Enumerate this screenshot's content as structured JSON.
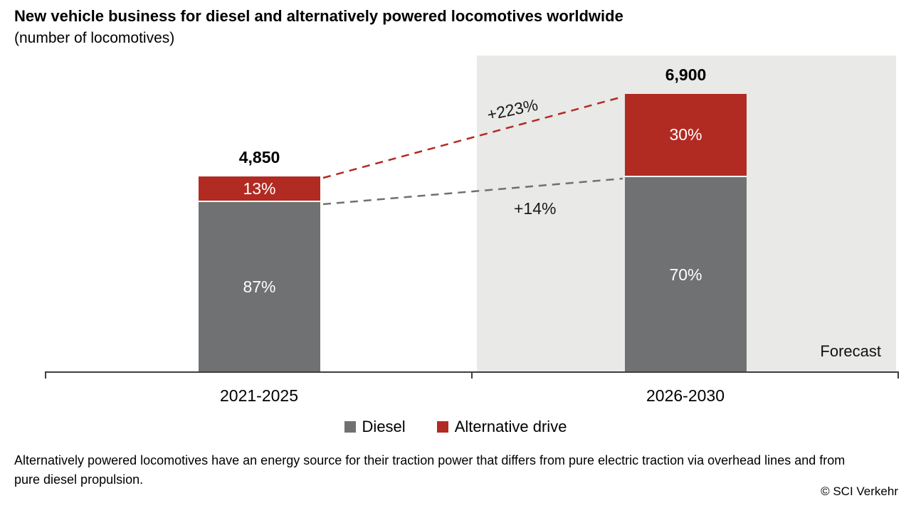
{
  "header": {
    "title": "New vehicle business for diesel and alternatively powered locomotives worldwide",
    "subtitle": "(number of locomotives)"
  },
  "chart_data": {
    "type": "bar",
    "stacked": true,
    "categories": [
      "2021-2025",
      "2026-2030"
    ],
    "totals": [
      4850,
      6900
    ],
    "total_labels": [
      "4,850",
      "6,900"
    ],
    "series": [
      {
        "name": "Diesel",
        "color": "#707173",
        "percent": [
          87,
          70
        ],
        "percent_labels": [
          "87%",
          "70%"
        ]
      },
      {
        "name": "Alternative drive",
        "color": "#B22B22",
        "percent": [
          13,
          30
        ],
        "percent_labels": [
          "13%",
          "30%"
        ]
      }
    ],
    "growth_annotations": [
      {
        "label": "+223%",
        "series": "Alternative drive",
        "color": "#B22B22"
      },
      {
        "label": "+14%",
        "series": "Diesel",
        "color": "#6F7072"
      }
    ],
    "forecast_label": "Forecast",
    "forecast_region_category": "2026-2030",
    "legend_position": "bottom",
    "grid": false
  },
  "legend": {
    "items": [
      {
        "label": "Diesel",
        "color": "#707173"
      },
      {
        "label": "Alternative drive",
        "color": "#B22B22"
      }
    ]
  },
  "footer": {
    "note_line1": "Alternatively powered locomotives have an energy source for their traction power that differs from pure electric traction via overhead lines and from",
    "note_line2": "pure diesel propulsion.",
    "copyright": "© SCI Verkehr"
  }
}
